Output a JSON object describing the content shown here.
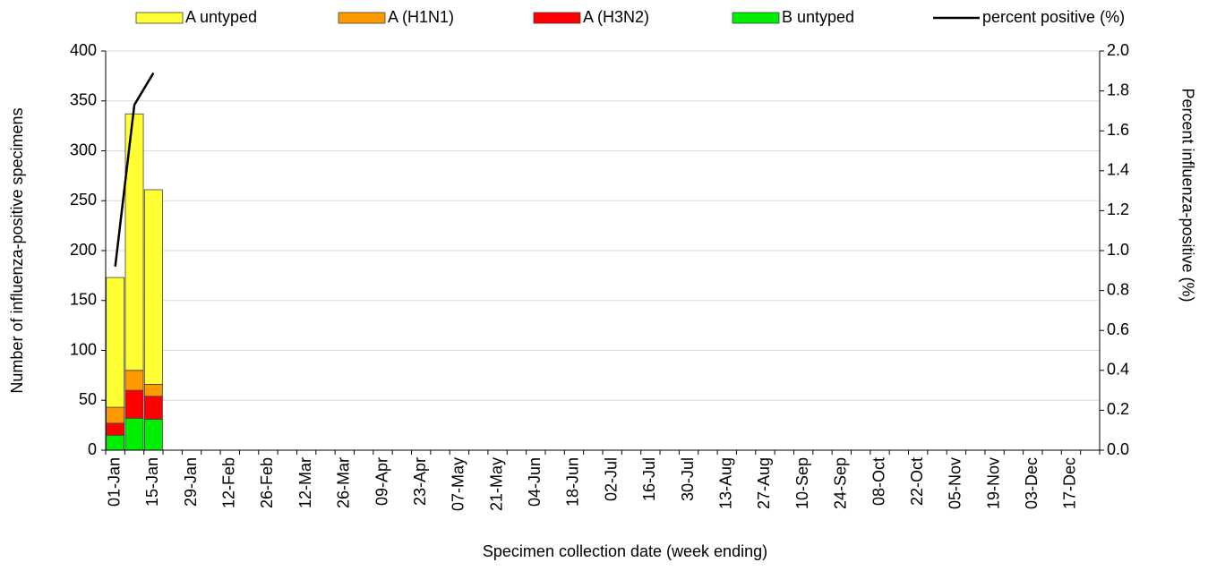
{
  "chart_data": {
    "type": "bar",
    "stacked": true,
    "legend": "top",
    "grid": true,
    "x_label": "Specimen collection date (week ending)",
    "y_label": "Number of influenza-positive specimens",
    "y2_label": "Percent influenza-positive (%)",
    "categories": [
      "01-Jan",
      null,
      "15-Jan",
      null,
      "29-Jan",
      null,
      "12-Feb",
      null,
      "26-Feb",
      null,
      "12-Mar",
      null,
      "26-Mar",
      null,
      "09-Apr",
      null,
      "23-Apr",
      null,
      "07-May",
      null,
      "21-May",
      null,
      "04-Jun",
      null,
      "18-Jun",
      null,
      "02-Jul",
      null,
      "16-Jul",
      null,
      "30-Jul",
      null,
      "13-Aug",
      null,
      "27-Aug",
      null,
      "10-Sep",
      null,
      "24-Sep",
      null,
      "08-Oct",
      null,
      "22-Oct",
      null,
      "05-Nov",
      null,
      "19-Nov",
      null,
      "03-Dec",
      null,
      "17-Dec",
      null
    ],
    "series": [
      {
        "name": "A untyped",
        "color": "#ffff33",
        "values": [
          130,
          257,
          195,
          null,
          null,
          null,
          null,
          null,
          null,
          null,
          null,
          null,
          null,
          null,
          null,
          null,
          null,
          null,
          null,
          null,
          null,
          null,
          null,
          null,
          null,
          null,
          null,
          null,
          null,
          null,
          null,
          null,
          null,
          null,
          null,
          null,
          null,
          null,
          null,
          null,
          null,
          null,
          null,
          null,
          null,
          null,
          null,
          null,
          null,
          null,
          null,
          null
        ]
      },
      {
        "name": "A (H1N1)",
        "color": "#ff9900",
        "values": [
          16,
          20,
          12,
          null,
          null,
          null,
          null,
          null,
          null,
          null,
          null,
          null,
          null,
          null,
          null,
          null,
          null,
          null,
          null,
          null,
          null,
          null,
          null,
          null,
          null,
          null,
          null,
          null,
          null,
          null,
          null,
          null,
          null,
          null,
          null,
          null,
          null,
          null,
          null,
          null,
          null,
          null,
          null,
          null,
          null,
          null,
          null,
          null,
          null,
          null,
          null,
          null
        ]
      },
      {
        "name": "A (H3N2)",
        "color": "#ff0000",
        "values": [
          12,
          28,
          23,
          null,
          null,
          null,
          null,
          null,
          null,
          null,
          null,
          null,
          null,
          null,
          null,
          null,
          null,
          null,
          null,
          null,
          null,
          null,
          null,
          null,
          null,
          null,
          null,
          null,
          null,
          null,
          null,
          null,
          null,
          null,
          null,
          null,
          null,
          null,
          null,
          null,
          null,
          null,
          null,
          null,
          null,
          null,
          null,
          null,
          null,
          null,
          null,
          null
        ]
      },
      {
        "name": "B untyped",
        "color": "#00ee00",
        "values": [
          15,
          32,
          31,
          null,
          null,
          null,
          null,
          null,
          null,
          null,
          null,
          null,
          null,
          null,
          null,
          null,
          null,
          null,
          null,
          null,
          null,
          null,
          null,
          null,
          null,
          null,
          null,
          null,
          null,
          null,
          null,
          null,
          null,
          null,
          null,
          null,
          null,
          null,
          null,
          null,
          null,
          null,
          null,
          null,
          null,
          null,
          null,
          null,
          null,
          null,
          null,
          null
        ]
      },
      {
        "name": "percent positive (%)",
        "type": "line",
        "axis": "y2",
        "color": "#000000",
        "values": [
          0.92,
          1.73,
          1.89,
          null,
          null,
          null,
          null,
          null,
          null,
          null,
          null,
          null,
          null,
          null,
          null,
          null,
          null,
          null,
          null,
          null,
          null,
          null,
          null,
          null,
          null,
          null,
          null,
          null,
          null,
          null,
          null,
          null,
          null,
          null,
          null,
          null,
          null,
          null,
          null,
          null,
          null,
          null,
          null,
          null,
          null,
          null,
          null,
          null,
          null,
          null,
          null,
          null
        ]
      }
    ],
    "ylim": [
      0,
      400
    ],
    "yticks": [
      0,
      50,
      100,
      150,
      200,
      250,
      300,
      350,
      400
    ],
    "y2lim": [
      0,
      2
    ],
    "y2ticks": [
      {
        "value": 0,
        "label": "0.0"
      },
      {
        "value": 0.2,
        "label": "0.2"
      },
      {
        "value": 0.4,
        "label": "0.4"
      },
      {
        "value": 0.6,
        "label": "0.6"
      },
      {
        "value": 0.8,
        "label": "0.8"
      },
      {
        "value": 1,
        "label": "1.0"
      },
      {
        "value": 1.2,
        "label": "1.2"
      },
      {
        "value": 1.4,
        "label": "1.4"
      },
      {
        "value": 1.6,
        "label": "1.6"
      },
      {
        "value": 1.8,
        "label": "1.8"
      },
      {
        "value": 2,
        "label": "2.0"
      }
    ]
  }
}
